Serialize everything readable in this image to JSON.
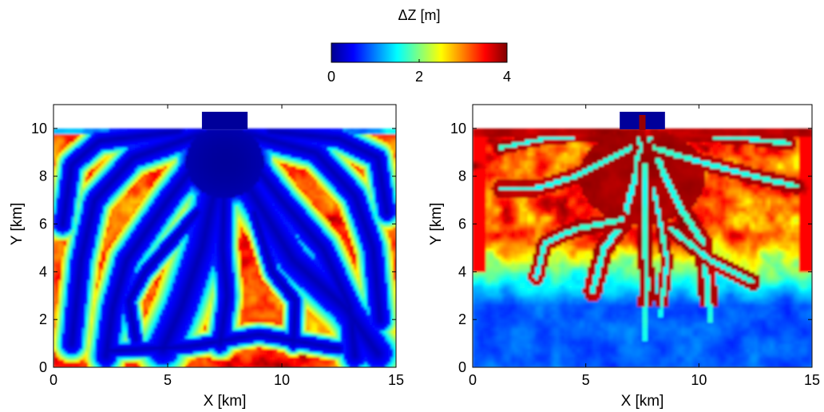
{
  "colorbar": {
    "title": "ΔZ [m]",
    "range": [
      0,
      4
    ],
    "ticks": [
      0,
      2,
      4
    ],
    "tick_labels": [
      "0",
      "2",
      "4"
    ],
    "colormap": "jet",
    "stops": [
      "#00008f",
      "#0000ff",
      "#0080ff",
      "#00ffff",
      "#80ff80",
      "#ffff00",
      "#ff8000",
      "#ff0000",
      "#800000"
    ]
  },
  "chart_data": [
    {
      "type": "heatmap",
      "title": "",
      "xlabel": "X [km]",
      "ylabel": "Y [km]",
      "xlim": [
        0,
        15
      ],
      "ylim": [
        0,
        11
      ],
      "xticks": [
        0,
        5,
        10,
        15
      ],
      "yticks": [
        0,
        2,
        4,
        6,
        8,
        10
      ],
      "colorbar_range": [
        0,
        4
      ],
      "domain_top_km": 10,
      "inlet": {
        "x_range": [
          6.5,
          8.5
        ],
        "y_range": [
          10,
          10.7
        ]
      },
      "channels": [
        {
          "points": [
            [
              7.5,
              10.5
            ],
            [
              7.2,
              8
            ],
            [
              6.5,
              5
            ],
            [
              5.6,
              2.5
            ],
            [
              4.8,
              0.8
            ]
          ],
          "width": 0.7
        },
        {
          "points": [
            [
              7.5,
              10.5
            ],
            [
              8.6,
              7.5
            ],
            [
              10.5,
              4.5
            ],
            [
              12.8,
              2.5
            ],
            [
              14.2,
              0.6
            ]
          ],
          "width": 0.65
        },
        {
          "points": [
            [
              7.0,
              9.5
            ],
            [
              5.0,
              7
            ],
            [
              3.2,
              4.5
            ],
            [
              2.6,
              2.5
            ],
            [
              2.3,
              0.5
            ]
          ],
          "width": 0.5
        },
        {
          "points": [
            [
              8.0,
              9.5
            ],
            [
              10.0,
              7
            ],
            [
              11.8,
              5
            ],
            [
              13.0,
              2.5
            ],
            [
              13.2,
              0.5
            ]
          ],
          "width": 0.5
        },
        {
          "points": [
            [
              6.5,
              9.8
            ],
            [
              3.5,
              8.8
            ],
            [
              1.8,
              7
            ],
            [
              1.2,
              4.5
            ],
            [
              0.8,
              1
            ]
          ],
          "width": 0.45
        },
        {
          "points": [
            [
              8.5,
              9.8
            ],
            [
              11.5,
              9
            ],
            [
              13.2,
              7.2
            ],
            [
              14.0,
              5
            ],
            [
              14.3,
              2
            ]
          ],
          "width": 0.45
        },
        {
          "points": [
            [
              5.5,
              9.9
            ],
            [
              2.0,
              9.5
            ],
            [
              0.8,
              8.5
            ],
            [
              0.4,
              6
            ]
          ],
          "width": 0.4
        },
        {
          "points": [
            [
              9.5,
              9.9
            ],
            [
              12.5,
              9.6
            ],
            [
              14.2,
              8.8
            ],
            [
              14.6,
              6.5
            ]
          ],
          "width": 0.4
        },
        {
          "points": [
            [
              7.5,
              8
            ],
            [
              7.4,
              5
            ],
            [
              7.6,
              3
            ],
            [
              7.3,
              1
            ]
          ],
          "width": 0.4
        },
        {
          "points": [
            [
              6.3,
              6.5
            ],
            [
              4.0,
              4
            ],
            [
              3.3,
              2.8
            ],
            [
              3.6,
              1.2
            ]
          ],
          "width": 0.3
        },
        {
          "points": [
            [
              8.8,
              6.5
            ],
            [
              9.6,
              4
            ],
            [
              10.6,
              2.8
            ],
            [
              10.5,
              1
            ]
          ],
          "width": 0.3
        },
        {
          "points": [
            [
              2.5,
              0.7
            ],
            [
              6.0,
              0.9
            ],
            [
              9.0,
              1.4
            ],
            [
              12.5,
              0.8
            ]
          ],
          "width": 0.3
        }
      ],
      "blob": {
        "cx": 7.5,
        "cy": 8.6,
        "rx": 1.7,
        "ry": 1.5
      }
    },
    {
      "type": "heatmap",
      "title": "",
      "xlabel": "X [km]",
      "ylabel": "Y [km]",
      "xlim": [
        0,
        15
      ],
      "ylim": [
        0,
        11
      ],
      "xticks": [
        0,
        5,
        10,
        15
      ],
      "yticks": [
        0,
        2,
        4,
        6,
        8,
        10
      ],
      "colorbar_range": [
        0,
        4
      ],
      "domain_top_km": 10,
      "inlet": {
        "x_range": [
          6.5,
          8.5
        ],
        "y_range": [
          10,
          10.7
        ]
      },
      "channels": [
        {
          "points": [
            [
              7.5,
              10.4
            ],
            [
              7.2,
              8
            ],
            [
              6.6,
              6
            ],
            [
              5.8,
              5
            ],
            [
              5.3,
              3.2
            ]
          ],
          "width": 0.12
        },
        {
          "points": [
            [
              7.5,
              10.4
            ],
            [
              8.5,
              8
            ],
            [
              9.3,
              6.5
            ],
            [
              10.2,
              5.2
            ],
            [
              10.5,
              2
            ]
          ],
          "width": 0.12
        },
        {
          "points": [
            [
              7.0,
              9.2
            ],
            [
              4.5,
              8
            ],
            [
              2.8,
              7.5
            ],
            [
              1.2,
              7.5
            ]
          ],
          "width": 0.1
        },
        {
          "points": [
            [
              8.0,
              9.2
            ],
            [
              10.5,
              8.5
            ],
            [
              12.5,
              8
            ],
            [
              14.3,
              7.6
            ]
          ],
          "width": 0.1
        },
        {
          "points": [
            [
              6.6,
              6.2
            ],
            [
              4.5,
              5.8
            ],
            [
              3.2,
              5.2
            ],
            [
              2.8,
              3.8
            ]
          ],
          "width": 0.1
        },
        {
          "points": [
            [
              8.8,
              5.8
            ],
            [
              10.5,
              4.5
            ],
            [
              12.4,
              3.6
            ]
          ],
          "width": 0.1
        },
        {
          "points": [
            [
              7.6,
              8.5
            ],
            [
              7.6,
              6
            ],
            [
              7.7,
              3.5
            ],
            [
              7.6,
              1.2
            ]
          ],
          "width": 0.1
        },
        {
          "points": [
            [
              8.0,
              7.5
            ],
            [
              8.6,
              4.5
            ],
            [
              8.3,
              2.2
            ]
          ],
          "width": 0.08
        },
        {
          "points": [
            [
              6.0,
              9.8
            ],
            [
              3.2,
              9.6
            ],
            [
              1.2,
              9.2
            ]
          ],
          "width": 0.08
        },
        {
          "points": [
            [
              9.0,
              9.8
            ],
            [
              12.0,
              9.6
            ],
            [
              14.0,
              9.4
            ]
          ],
          "width": 0.08
        }
      ],
      "blob": {
        "cx": 7.5,
        "cy": 8.0,
        "rx": 2.8,
        "ry": 2.0
      }
    }
  ]
}
